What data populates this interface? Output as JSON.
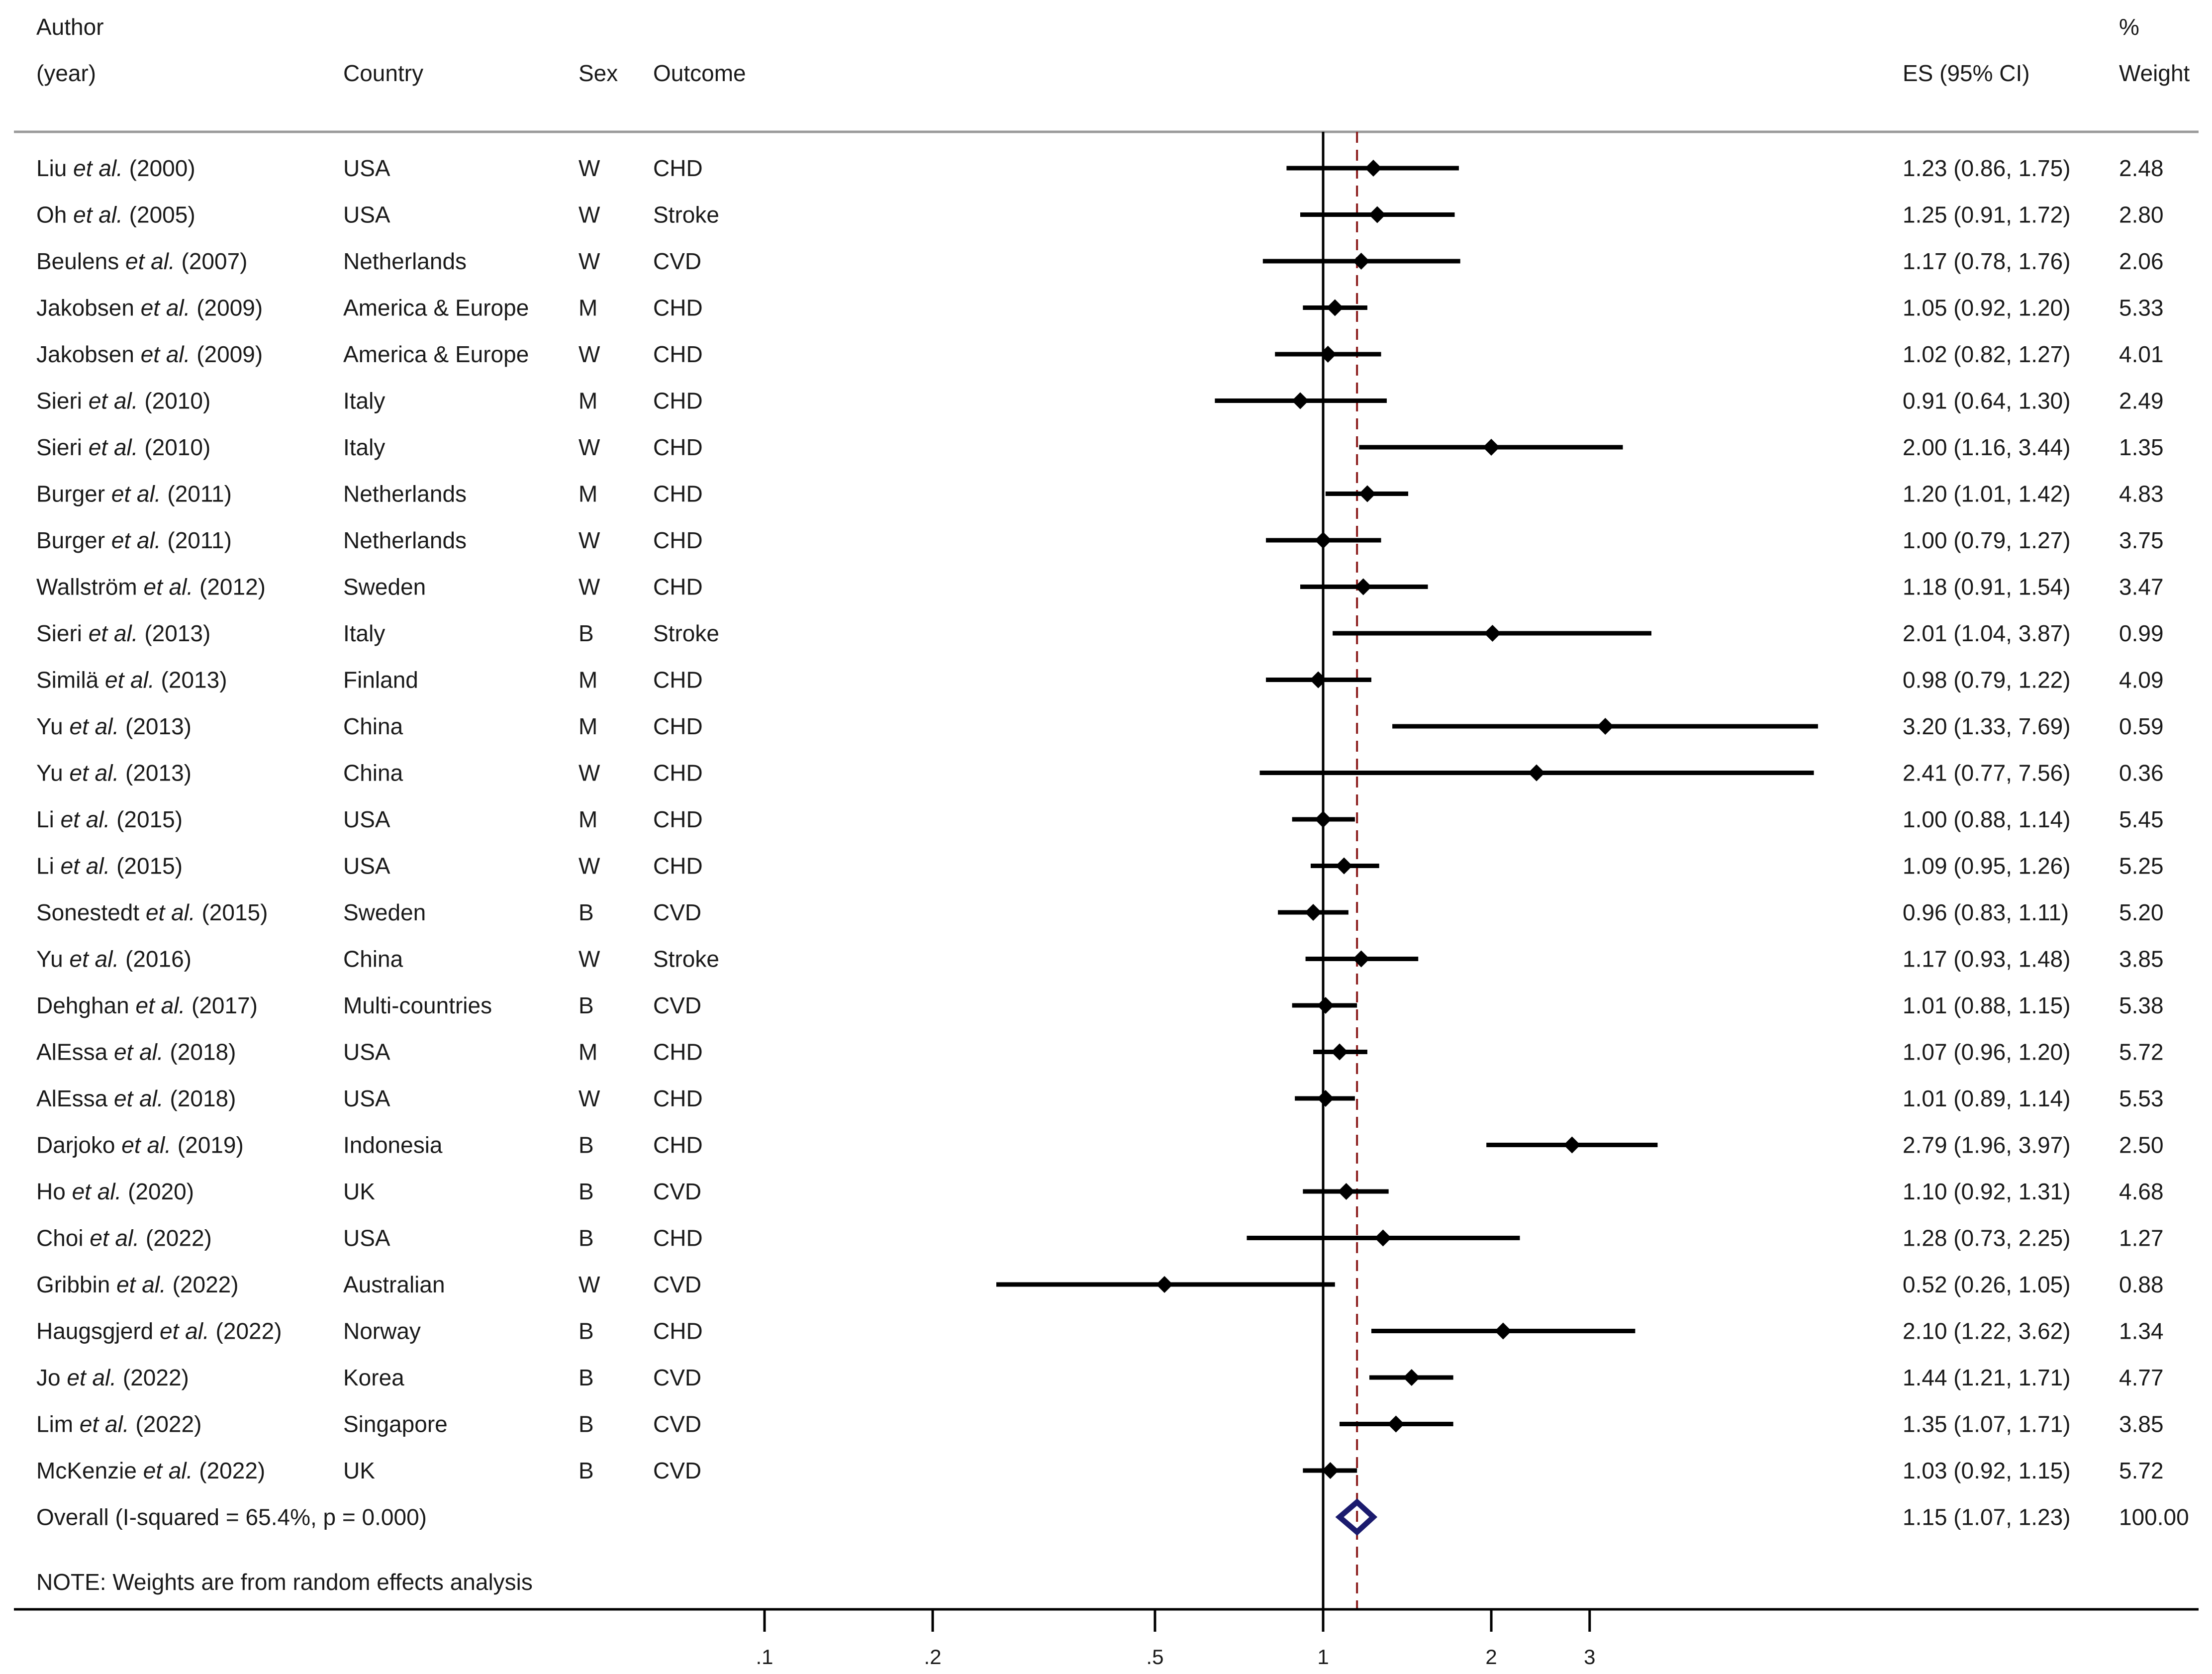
{
  "chart_data": {
    "type": "forest",
    "x_scale": "log",
    "null_line": 1,
    "header": {
      "author_line1": "Author",
      "author_line2": "(year)",
      "country": "Country",
      "sex": "Sex",
      "outcome": "Outcome",
      "es": "ES (95% CI)",
      "weight_line1": "%",
      "weight_line2": "Weight"
    },
    "etal": "et al.",
    "studies": [
      {
        "author": "Liu",
        "year": "(2000)",
        "country": "USA",
        "sex": "W",
        "outcome": "CHD",
        "es": 1.23,
        "lo": 0.86,
        "hi": 1.75,
        "es_text": "1.23 (0.86, 1.75)",
        "weight": "2.48"
      },
      {
        "author": "Oh",
        "year": "(2005)",
        "country": "USA",
        "sex": "W",
        "outcome": "Stroke",
        "es": 1.25,
        "lo": 0.91,
        "hi": 1.72,
        "es_text": "1.25 (0.91, 1.72)",
        "weight": "2.80"
      },
      {
        "author": "Beulens",
        "year": "(2007)",
        "country": "Netherlands",
        "sex": "W",
        "outcome": "CVD",
        "es": 1.17,
        "lo": 0.78,
        "hi": 1.76,
        "es_text": "1.17 (0.78, 1.76)",
        "weight": "2.06"
      },
      {
        "author": "Jakobsen",
        "year": "(2009)",
        "country": "America & Europe",
        "sex": "M",
        "outcome": "CHD",
        "es": 1.05,
        "lo": 0.92,
        "hi": 1.2,
        "es_text": "1.05 (0.92, 1.20)",
        "weight": "5.33"
      },
      {
        "author": "Jakobsen",
        "year": "(2009)",
        "country": "America & Europe",
        "sex": "W",
        "outcome": "CHD",
        "es": 1.02,
        "lo": 0.82,
        "hi": 1.27,
        "es_text": "1.02 (0.82, 1.27)",
        "weight": "4.01"
      },
      {
        "author": "Sieri",
        "year": "(2010)",
        "country": "Italy",
        "sex": "M",
        "outcome": "CHD",
        "es": 0.91,
        "lo": 0.64,
        "hi": 1.3,
        "es_text": "0.91 (0.64, 1.30)",
        "weight": "2.49"
      },
      {
        "author": "Sieri",
        "year": "(2010)",
        "country": "Italy",
        "sex": "W",
        "outcome": "CHD",
        "es": 2.0,
        "lo": 1.16,
        "hi": 3.44,
        "es_text": "2.00 (1.16, 3.44)",
        "weight": "1.35"
      },
      {
        "author": "Burger",
        "year": "(2011)",
        "country": "Netherlands",
        "sex": "M",
        "outcome": "CHD",
        "es": 1.2,
        "lo": 1.01,
        "hi": 1.42,
        "es_text": "1.20 (1.01, 1.42)",
        "weight": "4.83"
      },
      {
        "author": "Burger",
        "year": "(2011)",
        "country": "Netherlands",
        "sex": "W",
        "outcome": "CHD",
        "es": 1.0,
        "lo": 0.79,
        "hi": 1.27,
        "es_text": "1.00 (0.79, 1.27)",
        "weight": "3.75"
      },
      {
        "author": "Wallström",
        "year": "(2012)",
        "country": "Sweden",
        "sex": "W",
        "outcome": "CHD",
        "es": 1.18,
        "lo": 0.91,
        "hi": 1.54,
        "es_text": "1.18 (0.91, 1.54)",
        "weight": "3.47"
      },
      {
        "author": "Sieri",
        "year": "(2013)",
        "country": "Italy",
        "sex": "B",
        "outcome": "Stroke",
        "es": 2.01,
        "lo": 1.04,
        "hi": 3.87,
        "es_text": "2.01 (1.04, 3.87)",
        "weight": "0.99"
      },
      {
        "author": "Similä",
        "year": "(2013)",
        "country": "Finland",
        "sex": "M",
        "outcome": "CHD",
        "es": 0.98,
        "lo": 0.79,
        "hi": 1.22,
        "es_text": "0.98 (0.79, 1.22)",
        "weight": "4.09"
      },
      {
        "author": "Yu",
        "year": "(2013)",
        "country": "China",
        "sex": "M",
        "outcome": "CHD",
        "es": 3.2,
        "lo": 1.33,
        "hi": 7.69,
        "es_text": "3.20 (1.33, 7.69)",
        "weight": "0.59"
      },
      {
        "author": "Yu",
        "year": "(2013)",
        "country": "China",
        "sex": "W",
        "outcome": "CHD",
        "es": 2.41,
        "lo": 0.77,
        "hi": 7.56,
        "es_text": "2.41 (0.77, 7.56)",
        "weight": "0.36"
      },
      {
        "author": "Li",
        "year": "(2015)",
        "country": "USA",
        "sex": "M",
        "outcome": "CHD",
        "es": 1.0,
        "lo": 0.88,
        "hi": 1.14,
        "es_text": "1.00 (0.88, 1.14)",
        "weight": "5.45"
      },
      {
        "author": "Li",
        "year": "(2015)",
        "country": "USA",
        "sex": "W",
        "outcome": "CHD",
        "es": 1.09,
        "lo": 0.95,
        "hi": 1.26,
        "es_text": "1.09 (0.95, 1.26)",
        "weight": "5.25"
      },
      {
        "author": "Sonestedt",
        "year": "(2015)",
        "country": "Sweden",
        "sex": "B",
        "outcome": "CVD",
        "es": 0.96,
        "lo": 0.83,
        "hi": 1.11,
        "es_text": "0.96 (0.83, 1.11)",
        "weight": "5.20"
      },
      {
        "author": "Yu",
        "year": "(2016)",
        "country": "China",
        "sex": "W",
        "outcome": "Stroke",
        "es": 1.17,
        "lo": 0.93,
        "hi": 1.48,
        "es_text": "1.17 (0.93, 1.48)",
        "weight": "3.85"
      },
      {
        "author": "Dehghan",
        "year": "(2017)",
        "country": "Multi-countries",
        "sex": "B",
        "outcome": "CVD",
        "es": 1.01,
        "lo": 0.88,
        "hi": 1.15,
        "es_text": "1.01 (0.88, 1.15)",
        "weight": "5.38"
      },
      {
        "author": "AlEssa",
        "year": "(2018)",
        "country": "USA",
        "sex": "M",
        "outcome": "CHD",
        "es": 1.07,
        "lo": 0.96,
        "hi": 1.2,
        "es_text": "1.07 (0.96, 1.20)",
        "weight": "5.72"
      },
      {
        "author": "AlEssa",
        "year": "(2018)",
        "country": "USA",
        "sex": "W",
        "outcome": "CHD",
        "es": 1.01,
        "lo": 0.89,
        "hi": 1.14,
        "es_text": "1.01 (0.89, 1.14)",
        "weight": "5.53"
      },
      {
        "author": "Darjoko",
        "year": "(2019)",
        "country": "Indonesia",
        "sex": "B",
        "outcome": "CHD",
        "es": 2.79,
        "lo": 1.96,
        "hi": 3.97,
        "es_text": "2.79 (1.96, 3.97)",
        "weight": "2.50"
      },
      {
        "author": "Ho",
        "year": "(2020)",
        "country": "UK",
        "sex": "B",
        "outcome": "CVD",
        "es": 1.1,
        "lo": 0.92,
        "hi": 1.31,
        "es_text": "1.10 (0.92, 1.31)",
        "weight": "4.68"
      },
      {
        "author": "Choi",
        "year": "(2022)",
        "country": "USA",
        "sex": "B",
        "outcome": "CHD",
        "es": 1.28,
        "lo": 0.73,
        "hi": 2.25,
        "es_text": "1.28 (0.73, 2.25)",
        "weight": "1.27"
      },
      {
        "author": "Gribbin",
        "year": "(2022)",
        "country": "Australian",
        "sex": "W",
        "outcome": "CVD",
        "es": 0.52,
        "lo": 0.26,
        "hi": 1.05,
        "es_text": "0.52 (0.26, 1.05)",
        "weight": "0.88"
      },
      {
        "author": "Haugsgjerd",
        "year": "(2022)",
        "country": "Norway",
        "sex": "B",
        "outcome": "CHD",
        "es": 2.1,
        "lo": 1.22,
        "hi": 3.62,
        "es_text": "2.10 (1.22, 3.62)",
        "weight": "1.34"
      },
      {
        "author": "Jo",
        "year": "(2022)",
        "country": "Korea",
        "sex": "B",
        "outcome": "CVD",
        "es": 1.44,
        "lo": 1.21,
        "hi": 1.71,
        "es_text": "1.44 (1.21, 1.71)",
        "weight": "4.77"
      },
      {
        "author": "Lim",
        "year": "(2022)",
        "country": "Singapore",
        "sex": "B",
        "outcome": "CVD",
        "es": 1.35,
        "lo": 1.07,
        "hi": 1.71,
        "es_text": "1.35 (1.07, 1.71)",
        "weight": "3.85"
      },
      {
        "author": "McKenzie",
        "year": "(2022)",
        "country": "UK",
        "sex": "B",
        "outcome": "CVD",
        "es": 1.03,
        "lo": 0.92,
        "hi": 1.15,
        "es_text": "1.03 (0.92, 1.15)",
        "weight": "5.72"
      }
    ],
    "overall": {
      "label": "Overall  (I-squared = 65.4%, p = 0.000)",
      "es": 1.15,
      "lo": 1.07,
      "hi": 1.23,
      "es_text": "1.15 (1.07, 1.23)",
      "weight": "100.00"
    },
    "note": "NOTE: Weights are from random effects analysis",
    "x_ticks": [
      {
        "value": 0.1,
        "label": ".1"
      },
      {
        "value": 0.2,
        "label": ".2"
      },
      {
        "value": 0.5,
        "label": ".5"
      },
      {
        "value": 1,
        "label": "1"
      },
      {
        "value": 2,
        "label": "2"
      },
      {
        "value": 3,
        "label": "3"
      }
    ],
    "colors": {
      "text": "#1a1a1a",
      "line": "#000000",
      "overall_diamond": "#1b1b6e",
      "overall_line": "#8b1a1a"
    }
  }
}
